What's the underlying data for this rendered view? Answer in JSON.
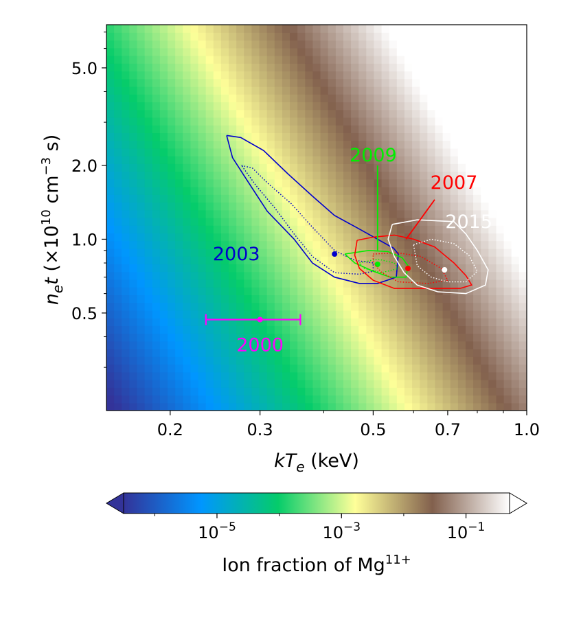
{
  "chart_data": {
    "type": "heatmap",
    "title": "",
    "xlabel": {
      "main": "kT",
      "sub": "e",
      "unit": " (keV)"
    },
    "ylabel": {
      "main": "n",
      "sub": "e",
      "t": "t",
      "unit_open": " (×10",
      "exp1": "10",
      "mid": " cm",
      "exp2": "−3",
      "end": " s)"
    },
    "x_scale": "log",
    "y_scale": "log",
    "xlim": [
      0.15,
      1.0
    ],
    "ylim": [
      0.2,
      7.5
    ],
    "x_ticks": [
      {
        "v": 0.2,
        "label": "0.2"
      },
      {
        "v": 0.3,
        "label": "0.3"
      },
      {
        "v": 0.5,
        "label": "0.5"
      },
      {
        "v": 0.7,
        "label": "0.7"
      },
      {
        "v": 1.0,
        "label": "1.0"
      }
    ],
    "x_minor": [
      0.4,
      0.6,
      0.8,
      0.9
    ],
    "y_ticks": [
      {
        "v": 0.5,
        "label": "0.5"
      },
      {
        "v": 1.0,
        "label": "1.0"
      },
      {
        "v": 2.0,
        "label": "2.0"
      },
      {
        "v": 5.0,
        "label": "5.0"
      }
    ],
    "y_minor": [
      0.3,
      0.4,
      0.6,
      0.7,
      0.8,
      0.9,
      3.0,
      4.0,
      6.0,
      7.0
    ],
    "colormap": {
      "name": "terrain",
      "colors": [
        "#333399",
        "#0096ff",
        "#05cc6a",
        "#ffff99",
        "#82604d",
        "#ffffff"
      ],
      "log_range": [
        -6.5,
        -0.3
      ]
    },
    "colorbar": {
      "label_main": "Ion fraction of Mg",
      "label_sup": "11+",
      "extend": "both",
      "ticks": [
        {
          "exp": -5,
          "base": "10",
          "sup": "−5"
        },
        {
          "exp": -3,
          "base": "10",
          "sup": "−3"
        },
        {
          "exp": -1,
          "base": "10",
          "sup": "−1"
        }
      ]
    },
    "series": [
      {
        "name": "2000",
        "color": "#ff00ff",
        "best_fit": {
          "kT": 0.3,
          "net": 0.47
        },
        "kT_range": [
          0.235,
          0.36
        ],
        "contours": []
      },
      {
        "name": "2003",
        "color": "#0000cc",
        "best_fit": {
          "kT": 0.42,
          "net": 0.87
        },
        "contours": [
          {
            "style": "solid",
            "points": [
              [
                0.258,
                2.65
              ],
              [
                0.275,
                2.6
              ],
              [
                0.305,
                2.3
              ],
              [
                0.34,
                1.85
              ],
              [
                0.38,
                1.5
              ],
              [
                0.42,
                1.25
              ],
              [
                0.47,
                1.1
              ],
              [
                0.51,
                1.0
              ],
              [
                0.548,
                0.92
              ],
              [
                0.56,
                0.87
              ],
              [
                0.555,
                0.7
              ],
              [
                0.51,
                0.66
              ],
              [
                0.47,
                0.66
              ],
              [
                0.42,
                0.7
              ],
              [
                0.38,
                0.8
              ],
              [
                0.35,
                1.0
              ],
              [
                0.31,
                1.3
              ],
              [
                0.285,
                1.7
              ],
              [
                0.265,
                2.15
              ],
              [
                0.258,
                2.65
              ]
            ]
          },
          {
            "style": "dotted",
            "points": [
              [
                0.276,
                2.0
              ],
              [
                0.29,
                1.95
              ],
              [
                0.31,
                1.7
              ],
              [
                0.345,
                1.4
              ],
              [
                0.38,
                1.12
              ],
              [
                0.42,
                0.9
              ],
              [
                0.46,
                0.82
              ],
              [
                0.5,
                0.8
              ],
              [
                0.5,
                0.74
              ],
              [
                0.47,
                0.72
              ],
              [
                0.42,
                0.73
              ],
              [
                0.38,
                0.85
              ],
              [
                0.35,
                1.05
              ],
              [
                0.32,
                1.35
              ],
              [
                0.295,
                1.65
              ],
              [
                0.276,
                2.0
              ]
            ]
          }
        ]
      },
      {
        "name": "2009",
        "color": "#00ee00",
        "best_fit": {
          "kT": 0.51,
          "net": 0.79
        },
        "contours": [
          {
            "style": "solid",
            "points": [
              [
                0.44,
                0.87
              ],
              [
                0.49,
                0.9
              ],
              [
                0.535,
                0.89
              ],
              [
                0.57,
                0.84
              ],
              [
                0.585,
                0.78
              ],
              [
                0.58,
                0.7
              ],
              [
                0.54,
                0.7
              ],
              [
                0.5,
                0.74
              ],
              [
                0.46,
                0.8
              ],
              [
                0.44,
                0.87
              ]
            ]
          },
          {
            "style": "dotted",
            "points": [
              [
                0.47,
                0.8
              ],
              [
                0.51,
                0.83
              ],
              [
                0.55,
                0.8
              ],
              [
                0.56,
                0.76
              ],
              [
                0.52,
                0.73
              ],
              [
                0.48,
                0.76
              ],
              [
                0.47,
                0.8
              ]
            ]
          }
        ]
      },
      {
        "name": "2007",
        "color": "#ff0000",
        "best_fit": {
          "kT": 0.585,
          "net": 0.76
        },
        "contours": [
          {
            "style": "solid",
            "points": [
              [
                0.465,
                0.99
              ],
              [
                0.5,
                1.02
              ],
              [
                0.55,
                1.04
              ],
              [
                0.6,
                1.0
              ],
              [
                0.66,
                0.93
              ],
              [
                0.72,
                0.8
              ],
              [
                0.76,
                0.71
              ],
              [
                0.78,
                0.65
              ],
              [
                0.74,
                0.63
              ],
              [
                0.65,
                0.63
              ],
              [
                0.55,
                0.63
              ],
              [
                0.5,
                0.68
              ],
              [
                0.47,
                0.76
              ],
              [
                0.46,
                0.86
              ],
              [
                0.465,
                0.99
              ]
            ]
          },
          {
            "style": "dotted",
            "points": [
              [
                0.5,
                0.87
              ],
              [
                0.56,
                0.88
              ],
              [
                0.62,
                0.85
              ],
              [
                0.68,
                0.76
              ],
              [
                0.7,
                0.68
              ],
              [
                0.64,
                0.66
              ],
              [
                0.56,
                0.67
              ],
              [
                0.52,
                0.73
              ],
              [
                0.5,
                0.8
              ],
              [
                0.5,
                0.87
              ]
            ]
          }
        ]
      },
      {
        "name": "2015",
        "color": "#ffffff",
        "best_fit": {
          "kT": 0.69,
          "net": 0.75
        },
        "contours": [
          {
            "style": "solid",
            "points": [
              [
                0.545,
                1.15
              ],
              [
                0.61,
                1.2
              ],
              [
                0.72,
                1.18
              ],
              [
                0.76,
                1.05
              ],
              [
                0.8,
                0.9
              ],
              [
                0.84,
                0.75
              ],
              [
                0.83,
                0.65
              ],
              [
                0.76,
                0.6
              ],
              [
                0.67,
                0.61
              ],
              [
                0.61,
                0.65
              ],
              [
                0.575,
                0.73
              ],
              [
                0.55,
                0.85
              ],
              [
                0.535,
                1.0
              ],
              [
                0.545,
                1.15
              ]
            ]
          },
          {
            "style": "dotted",
            "points": [
              [
                0.6,
                0.95
              ],
              [
                0.65,
                1.0
              ],
              [
                0.72,
                0.96
              ],
              [
                0.77,
                0.86
              ],
              [
                0.8,
                0.74
              ],
              [
                0.76,
                0.67
              ],
              [
                0.7,
                0.67
              ],
              [
                0.65,
                0.7
              ],
              [
                0.61,
                0.78
              ],
              [
                0.6,
                0.95
              ]
            ]
          }
        ]
      }
    ],
    "annotations": [
      {
        "text": "2003",
        "color": "#0000cc",
        "kT": 0.3,
        "net": 0.87,
        "anchor": "end"
      },
      {
        "text": "2009",
        "color": "#00ee00",
        "kT": 0.5,
        "net": 2.2,
        "anchor": "middle",
        "leader": [
          [
            0.51,
            2.0
          ],
          [
            0.51,
            0.9
          ]
        ]
      },
      {
        "text": "2007",
        "color": "#ff0000",
        "kT": 0.72,
        "net": 1.7,
        "anchor": "middle",
        "leader": [
          [
            0.66,
            1.45
          ],
          [
            0.58,
            1.0
          ]
        ]
      },
      {
        "text": "2015",
        "color": "#ffffff",
        "kT": 0.77,
        "net": 1.18,
        "anchor": "middle"
      },
      {
        "text": "2000",
        "color": "#ff00ff",
        "kT": 0.3,
        "net": 0.37,
        "anchor": "middle"
      }
    ]
  }
}
